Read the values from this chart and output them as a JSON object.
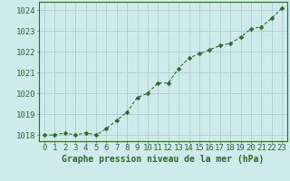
{
  "x": [
    0,
    1,
    2,
    3,
    4,
    5,
    6,
    7,
    8,
    9,
    10,
    11,
    12,
    13,
    14,
    15,
    16,
    17,
    18,
    19,
    20,
    21,
    22,
    23
  ],
  "y": [
    1018.0,
    1018.0,
    1018.1,
    1018.0,
    1018.1,
    1018.0,
    1018.3,
    1018.7,
    1019.1,
    1019.8,
    1020.0,
    1020.5,
    1020.5,
    1021.2,
    1021.7,
    1021.9,
    1022.1,
    1022.3,
    1022.4,
    1022.7,
    1023.1,
    1023.2,
    1023.6,
    1024.1
  ],
  "line_color": "#2d6a2d",
  "marker": "D",
  "marker_size": 2.5,
  "bg_color": "#ceeaea",
  "grid_color": "#aac8c8",
  "ylabel_ticks": [
    1018,
    1019,
    1020,
    1021,
    1022,
    1023,
    1024
  ],
  "xlabel": "Graphe pression niveau de la mer (hPa)",
  "xlabel_fontsize": 7,
  "tick_fontsize": 6.5,
  "ylim": [
    1017.7,
    1024.4
  ],
  "xlim": [
    -0.5,
    23.5
  ]
}
